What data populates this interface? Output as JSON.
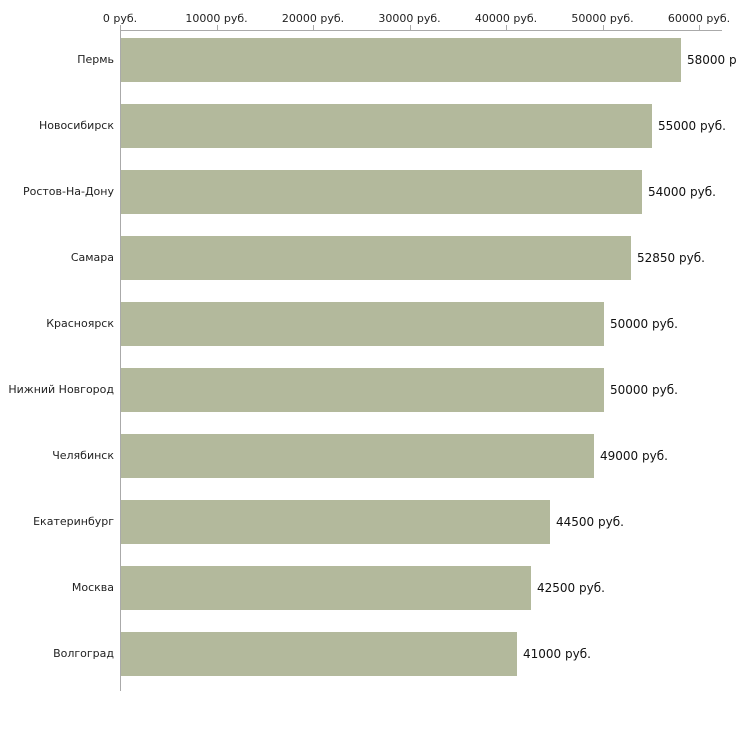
{
  "chart_data": {
    "type": "bar",
    "orientation": "horizontal",
    "title": "",
    "xlabel": "",
    "ylabel": "",
    "categories": [
      "Пермь",
      "Новосибирск",
      "Ростов-На-Дону",
      "Самара",
      "Красноярск",
      "Нижний Новгород",
      "Челябинск",
      "Екатеринбург",
      "Москва",
      "Волгоград"
    ],
    "values": [
      58000,
      55000,
      54000,
      52850,
      50000,
      50000,
      49000,
      44500,
      42500,
      41000
    ],
    "value_labels": [
      "58000 р",
      "55000 руб.",
      "54000 руб.",
      "52850 руб.",
      "50000 руб.",
      "50000 руб.",
      "49000 руб.",
      "44500 руб.",
      "42500 руб.",
      "41000 руб."
    ],
    "x_ticks": [
      {
        "value": 0,
        "label": "0 руб."
      },
      {
        "value": 10000,
        "label": "10000 руб."
      },
      {
        "value": 20000,
        "label": "20000 руб."
      },
      {
        "value": 30000,
        "label": "30000 руб."
      },
      {
        "value": 40000,
        "label": "40000 руб."
      },
      {
        "value": 50000,
        "label": "50000 руб."
      },
      {
        "value": 60000,
        "label": "60000 руб."
      }
    ],
    "xlim": [
      0,
      60000
    ],
    "legend": "none",
    "grid": false,
    "bar_color": "#b3b99c",
    "axis_color": "#aaaaaa",
    "text_color": "#222222"
  }
}
